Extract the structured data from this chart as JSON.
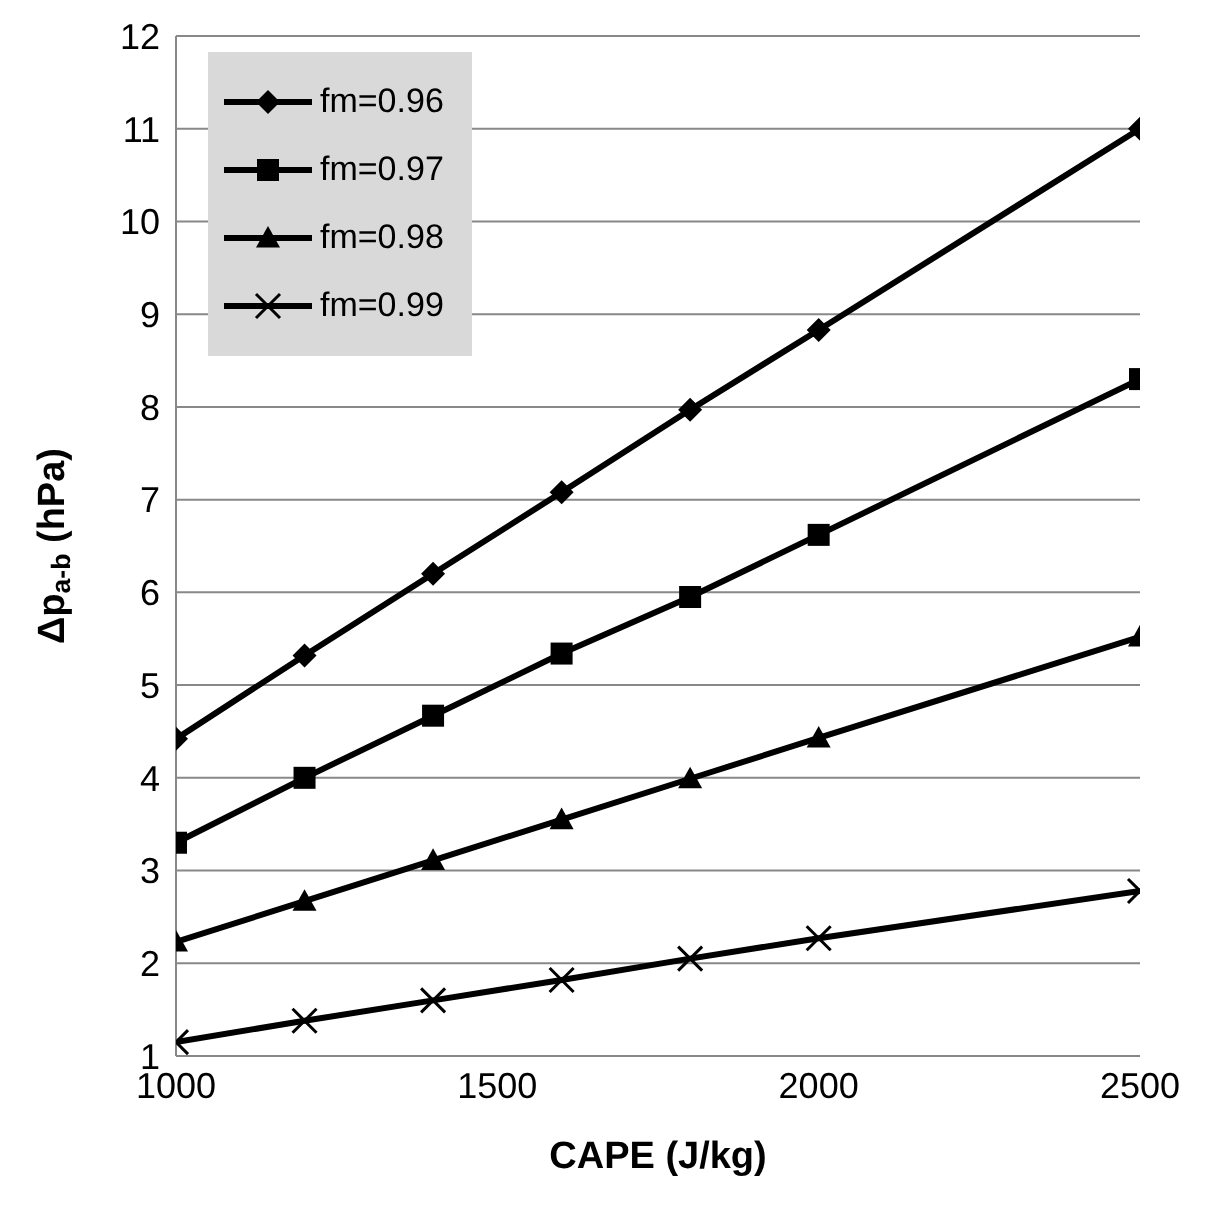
{
  "chart_data": {
    "type": "line",
    "xlabel": "CAPE (J/kg)",
    "ylabel": "Δp$_{a-b}$ (hPa)",
    "x": [
      1000,
      1200,
      1400,
      1600,
      1800,
      2000,
      2500
    ],
    "xlim": [
      1000,
      2500
    ],
    "xticks": [
      1000,
      1500,
      2000,
      2500
    ],
    "ylim": [
      1,
      12
    ],
    "yticks": [
      1,
      2,
      3,
      4,
      5,
      6,
      7,
      8,
      9,
      10,
      11,
      12
    ],
    "grid": "y",
    "legend": "top left",
    "line_style": "solid",
    "series": [
      {
        "name": "fm=0.96",
        "color": "#000000",
        "marker": "diamond",
        "values": [
          4.42,
          5.32,
          6.2,
          7.08,
          7.97,
          8.83,
          11.0
        ]
      },
      {
        "name": "fm=0.97",
        "color": "#000000",
        "marker": "square",
        "values": [
          3.3,
          4.0,
          4.67,
          5.34,
          5.95,
          6.62,
          8.3
        ]
      },
      {
        "name": "fm=0.98",
        "color": "#000000",
        "marker": "triangle",
        "values": [
          2.23,
          2.67,
          3.11,
          3.55,
          3.99,
          4.43,
          5.52
        ]
      },
      {
        "name": "fm=0.99",
        "color": "#000000",
        "marker": "cross",
        "values": [
          1.15,
          1.38,
          1.6,
          1.82,
          2.05,
          2.27,
          2.78
        ]
      }
    ]
  }
}
